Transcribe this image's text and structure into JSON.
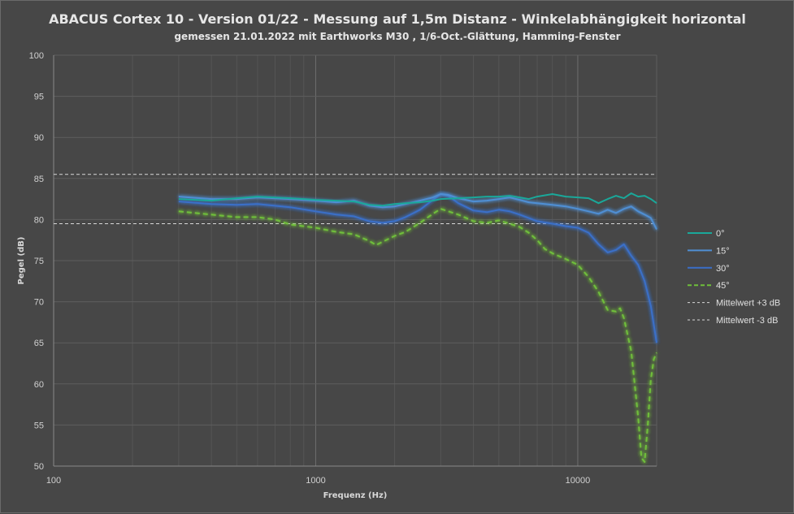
{
  "chart_data": {
    "type": "line",
    "title": "ABACUS Cortex 10 - Version 01/22 - Messung auf 1,5m Distanz - Winkelabhängigkeit horizontal",
    "subtitle": "gemessen 21.01.2022  mit Earthworks M30 , 1/6-Oct.-Glättung, Hamming-Fenster",
    "xlabel": "Frequenz (Hz)",
    "ylabel": "Pegel (dB)",
    "x_scale": "log",
    "xlim": [
      100,
      20000
    ],
    "ylim": [
      50,
      100
    ],
    "x_ticks": [
      "100",
      "1000",
      "10000"
    ],
    "y_ticks": [
      "50",
      "55",
      "60",
      "65",
      "70",
      "75",
      "80",
      "85",
      "90",
      "95",
      "100"
    ],
    "grid": true,
    "legend_position": "right",
    "series": [
      {
        "name": "0°",
        "color": "#1aa89a",
        "style": "solid",
        "glow": false,
        "points": [
          [
            300,
            82.5
          ],
          [
            400,
            82.3
          ],
          [
            500,
            82.6
          ],
          [
            600,
            82.8
          ],
          [
            800,
            82.6
          ],
          [
            1000,
            82.4
          ],
          [
            1200,
            82.3
          ],
          [
            1400,
            82.2
          ],
          [
            1600,
            81.8
          ],
          [
            1800,
            81.7
          ],
          [
            2000,
            81.9
          ],
          [
            2200,
            82.0
          ],
          [
            2500,
            82.1
          ],
          [
            2800,
            82.3
          ],
          [
            3000,
            82.5
          ],
          [
            3500,
            82.6
          ],
          [
            4000,
            82.7
          ],
          [
            4500,
            82.8
          ],
          [
            5000,
            82.8
          ],
          [
            5500,
            82.9
          ],
          [
            6000,
            82.7
          ],
          [
            6500,
            82.5
          ],
          [
            7000,
            82.8
          ],
          [
            8000,
            83.1
          ],
          [
            9000,
            82.8
          ],
          [
            10000,
            82.7
          ],
          [
            11000,
            82.6
          ],
          [
            12000,
            82.0
          ],
          [
            13000,
            82.5
          ],
          [
            14000,
            82.9
          ],
          [
            15000,
            82.6
          ],
          [
            16000,
            83.2
          ],
          [
            17000,
            82.8
          ],
          [
            18000,
            82.9
          ],
          [
            19000,
            82.5
          ],
          [
            20000,
            82.0
          ]
        ]
      },
      {
        "name": "15°",
        "color": "#4f8fd4",
        "style": "solid",
        "glow": true,
        "points": [
          [
            300,
            82.8
          ],
          [
            400,
            82.5
          ],
          [
            500,
            82.5
          ],
          [
            600,
            82.7
          ],
          [
            800,
            82.5
          ],
          [
            1000,
            82.3
          ],
          [
            1200,
            82.1
          ],
          [
            1400,
            82.3
          ],
          [
            1600,
            81.7
          ],
          [
            1800,
            81.5
          ],
          [
            2000,
            81.6
          ],
          [
            2200,
            81.9
          ],
          [
            2500,
            82.3
          ],
          [
            2800,
            82.7
          ],
          [
            3000,
            83.1
          ],
          [
            3200,
            83.0
          ],
          [
            3500,
            82.6
          ],
          [
            4000,
            82.2
          ],
          [
            4500,
            82.3
          ],
          [
            5000,
            82.5
          ],
          [
            5500,
            82.7
          ],
          [
            6000,
            82.4
          ],
          [
            6500,
            82.1
          ],
          [
            7000,
            82.0
          ],
          [
            8000,
            81.8
          ],
          [
            9000,
            81.6
          ],
          [
            10000,
            81.3
          ],
          [
            11000,
            81.0
          ],
          [
            12000,
            80.7
          ],
          [
            13000,
            81.2
          ],
          [
            14000,
            80.8
          ],
          [
            15000,
            81.3
          ],
          [
            16000,
            81.6
          ],
          [
            17000,
            81.0
          ],
          [
            18000,
            80.6
          ],
          [
            19000,
            80.2
          ],
          [
            20000,
            78.8
          ]
        ]
      },
      {
        "name": "30°",
        "color": "#3a6fc8",
        "style": "solid",
        "glow": true,
        "points": [
          [
            300,
            82.2
          ],
          [
            400,
            81.9
          ],
          [
            500,
            81.8
          ],
          [
            600,
            81.9
          ],
          [
            800,
            81.5
          ],
          [
            1000,
            81.0
          ],
          [
            1200,
            80.6
          ],
          [
            1400,
            80.4
          ],
          [
            1600,
            79.8
          ],
          [
            1800,
            79.6
          ],
          [
            2000,
            79.8
          ],
          [
            2200,
            80.3
          ],
          [
            2500,
            81.2
          ],
          [
            2800,
            82.4
          ],
          [
            3000,
            83.1
          ],
          [
            3200,
            82.9
          ],
          [
            3500,
            82.0
          ],
          [
            4000,
            81.1
          ],
          [
            4500,
            80.9
          ],
          [
            5000,
            81.2
          ],
          [
            5500,
            81.0
          ],
          [
            6000,
            80.6
          ],
          [
            7000,
            79.8
          ],
          [
            8000,
            79.5
          ],
          [
            9000,
            79.2
          ],
          [
            10000,
            79.0
          ],
          [
            11000,
            78.4
          ],
          [
            12000,
            77.0
          ],
          [
            13000,
            76.0
          ],
          [
            14000,
            76.3
          ],
          [
            15000,
            77.0
          ],
          [
            16000,
            75.6
          ],
          [
            17000,
            74.5
          ],
          [
            18000,
            72.5
          ],
          [
            19000,
            69.5
          ],
          [
            20000,
            65.0
          ]
        ]
      },
      {
        "name": "45°",
        "color": "#6fbf3a",
        "style": "dashed",
        "glow": true,
        "points": [
          [
            300,
            81.0
          ],
          [
            400,
            80.6
          ],
          [
            500,
            80.3
          ],
          [
            600,
            80.3
          ],
          [
            700,
            80.0
          ],
          [
            800,
            79.4
          ],
          [
            1000,
            79.0
          ],
          [
            1200,
            78.5
          ],
          [
            1400,
            78.2
          ],
          [
            1600,
            77.4
          ],
          [
            1700,
            76.9
          ],
          [
            1800,
            77.3
          ],
          [
            2000,
            78.0
          ],
          [
            2200,
            78.5
          ],
          [
            2500,
            79.6
          ],
          [
            2800,
            80.7
          ],
          [
            3000,
            81.3
          ],
          [
            3500,
            80.6
          ],
          [
            4000,
            79.8
          ],
          [
            4500,
            79.6
          ],
          [
            5000,
            79.9
          ],
          [
            5500,
            79.5
          ],
          [
            6000,
            79.1
          ],
          [
            6500,
            78.4
          ],
          [
            7000,
            77.5
          ],
          [
            7500,
            76.4
          ],
          [
            8000,
            75.9
          ],
          [
            9000,
            75.2
          ],
          [
            10000,
            74.5
          ],
          [
            11000,
            73.0
          ],
          [
            12000,
            71.2
          ],
          [
            13000,
            69.0
          ],
          [
            14000,
            68.8
          ],
          [
            14500,
            69.2
          ],
          [
            15000,
            68.0
          ],
          [
            16000,
            64.0
          ],
          [
            17000,
            56.0
          ],
          [
            17500,
            51.0
          ],
          [
            18000,
            50.5
          ],
          [
            18500,
            55.0
          ],
          [
            19000,
            60.5
          ],
          [
            19500,
            63.0
          ],
          [
            20000,
            63.8
          ]
        ]
      },
      {
        "name": "Mittelwert +3 dB",
        "color": "#d8d8d8",
        "style": "thin-dashed",
        "glow": false,
        "points": [
          [
            100,
            85.5
          ],
          [
            20000,
            85.5
          ]
        ]
      },
      {
        "name": "Mittelwert -3 dB",
        "color": "#d8d8d8",
        "style": "thin-dashed",
        "glow": false,
        "points": [
          [
            100,
            79.5
          ],
          [
            20000,
            79.5
          ]
        ]
      }
    ]
  }
}
